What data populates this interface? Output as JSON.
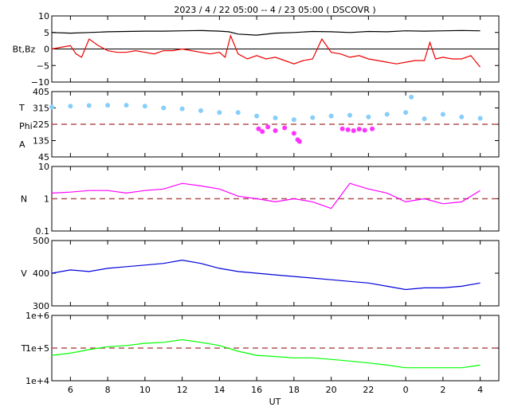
{
  "title": "2023 /  4 / 22   05:00 --  4 / 23   05:00 ( DSCOVR )",
  "x_axis": {
    "label": "UT",
    "ticks": [
      {
        "t": 6,
        "label": "6"
      },
      {
        "t": 8,
        "label": "8"
      },
      {
        "t": 10,
        "label": "10"
      },
      {
        "t": 12,
        "label": "12"
      },
      {
        "t": 14,
        "label": "14"
      },
      {
        "t": 16,
        "label": "16"
      },
      {
        "t": 18,
        "label": "18"
      },
      {
        "t": 20,
        "label": "20"
      },
      {
        "t": 22,
        "label": "22"
      },
      {
        "t": 24,
        "label": "0"
      },
      {
        "t": 26,
        "label": "2"
      },
      {
        "t": 28,
        "label": "4"
      }
    ]
  },
  "colors": {
    "bt": "#000000",
    "bz": "#ee0000",
    "temp_scatter": "#87cefa",
    "phi_scatter": "#ff33ff",
    "density": "#ff00ff",
    "velocity": "#0000dd",
    "temperature": "#00ff00",
    "dashed_ref": "#b05050"
  },
  "chart_data": [
    {
      "type": "line",
      "ylabel": "Bt,Bz",
      "yticks": [
        "10",
        "5",
        "0",
        "−5",
        "−10"
      ],
      "ylim": [
        -10,
        10
      ],
      "reference_line": 0,
      "series": [
        {
          "key": "Bt",
          "x": [
            5,
            6,
            7,
            8,
            9,
            10,
            11,
            12,
            13,
            14,
            14.5,
            15,
            16,
            17,
            18,
            19,
            20,
            21,
            22,
            23,
            24,
            25,
            26,
            27,
            28
          ],
          "values": [
            5.0,
            4.8,
            5.0,
            5.2,
            5.3,
            5.4,
            5.4,
            5.5,
            5.6,
            5.4,
            5.2,
            4.5,
            4.2,
            4.8,
            5.0,
            5.3,
            5.2,
            5.0,
            5.3,
            5.2,
            5.5,
            5.4,
            5.5,
            5.6,
            5.5
          ]
        },
        {
          "key": "Bz",
          "x": [
            5,
            5.5,
            6,
            6.3,
            6.6,
            7,
            7.5,
            8,
            8.5,
            9,
            9.5,
            10,
            10.5,
            11,
            11.5,
            12,
            12.5,
            13,
            13.5,
            14,
            14.3,
            14.6,
            15,
            15.5,
            16,
            16.5,
            17,
            17.5,
            18,
            18.5,
            19,
            19.5,
            20,
            20.5,
            21,
            21.5,
            22,
            22.5,
            23,
            23.5,
            24,
            24.5,
            25,
            25.3,
            25.6,
            26,
            26.5,
            27,
            27.5,
            28
          ],
          "values": [
            0,
            0.5,
            1,
            -1.5,
            -2.5,
            3,
            1,
            -0.5,
            -1,
            -1,
            -0.5,
            -1,
            -1.5,
            -0.5,
            -0.5,
            0,
            -0.5,
            -1,
            -1.5,
            -1,
            -2.5,
            4,
            -1.5,
            -3,
            -2,
            -3,
            -2.5,
            -3.5,
            -4.5,
            -3.5,
            -3,
            3,
            -1,
            -1.5,
            -2.5,
            -2,
            -3,
            -3.5,
            -4,
            -4.5,
            -4,
            -3.5,
            -3.5,
            2,
            -3,
            -2.5,
            -3,
            -3,
            -2,
            -5.5
          ]
        }
      ]
    },
    {
      "type": "scatter",
      "ylabels": [
        "T",
        "Phi",
        "A"
      ],
      "yticks": [
        "405",
        "315",
        "225",
        "135",
        "45"
      ],
      "ylim": [
        45,
        405
      ],
      "reference_line": 225,
      "series": [
        {
          "key": "temperature-scatter",
          "x": [
            5,
            6,
            7,
            8,
            9,
            10,
            11,
            12,
            13,
            14,
            15,
            16,
            17,
            18,
            19,
            20,
            21,
            22,
            23,
            24,
            24.3,
            25,
            26,
            27,
            28
          ],
          "values": [
            320,
            325,
            328,
            330,
            330,
            325,
            315,
            310,
            300,
            290,
            290,
            270,
            260,
            250,
            262,
            270,
            275,
            265,
            280,
            290,
            375,
            255,
            280,
            265,
            258
          ]
        },
        {
          "key": "phi-scatter",
          "x": [
            16.1,
            16.3,
            16.6,
            17,
            17.5,
            18,
            18.2,
            18.3,
            20.6,
            20.9,
            21.2,
            21.5,
            21.8,
            22.2
          ],
          "values": [
            200,
            185,
            210,
            190,
            205,
            175,
            140,
            130,
            200,
            195,
            190,
            198,
            192,
            200
          ]
        }
      ]
    },
    {
      "type": "line",
      "ylabel": "N",
      "yscale": "log",
      "yticks": [
        "10",
        "1",
        "0.1"
      ],
      "ylim": [
        0.1,
        10
      ],
      "reference_line": 1,
      "series": [
        {
          "key": "N",
          "x": [
            5,
            6,
            7,
            8,
            9,
            10,
            11,
            12,
            13,
            14,
            15,
            16,
            16.5,
            17,
            18,
            19,
            20,
            21,
            22,
            23,
            24,
            25,
            26,
            27,
            28
          ],
          "values": [
            1.5,
            1.6,
            1.8,
            1.8,
            1.5,
            1.8,
            2.0,
            3.0,
            2.5,
            2.0,
            1.2,
            1.0,
            0.9,
            0.8,
            1.0,
            0.8,
            0.5,
            3.0,
            2.0,
            1.5,
            0.8,
            1.0,
            0.7,
            0.8,
            1.8
          ]
        }
      ]
    },
    {
      "type": "line",
      "ylabel": "V",
      "yticks": [
        "500",
        "400",
        "300"
      ],
      "ylim": [
        300,
        500
      ],
      "series": [
        {
          "key": "V",
          "x": [
            5,
            6,
            7,
            8,
            9,
            10,
            11,
            12,
            13,
            14,
            15,
            16,
            17,
            18,
            19,
            20,
            21,
            22,
            23,
            24,
            25,
            26,
            27,
            28
          ],
          "values": [
            400,
            410,
            405,
            415,
            420,
            425,
            430,
            440,
            430,
            415,
            405,
            400,
            395,
            390,
            385,
            380,
            375,
            370,
            360,
            350,
            355,
            355,
            360,
            370
          ]
        }
      ]
    },
    {
      "type": "line",
      "ylabel": "T",
      "yscale": "log",
      "yticks": [
        "1e+6",
        "1e+5",
        "1e+4"
      ],
      "ylim": [
        10000,
        1000000
      ],
      "reference_line": 100000,
      "series": [
        {
          "key": "T",
          "x": [
            5,
            6,
            7,
            8,
            9,
            10,
            11,
            12,
            13,
            14,
            15,
            16,
            17,
            18,
            19,
            20,
            21,
            22,
            23,
            24,
            25,
            26,
            27,
            28
          ],
          "values": [
            60000,
            70000,
            90000,
            110000,
            120000,
            140000,
            150000,
            180000,
            150000,
            120000,
            80000,
            60000,
            55000,
            50000,
            50000,
            45000,
            40000,
            35000,
            30000,
            25000,
            25000,
            25000,
            25000,
            30000
          ]
        }
      ]
    }
  ]
}
